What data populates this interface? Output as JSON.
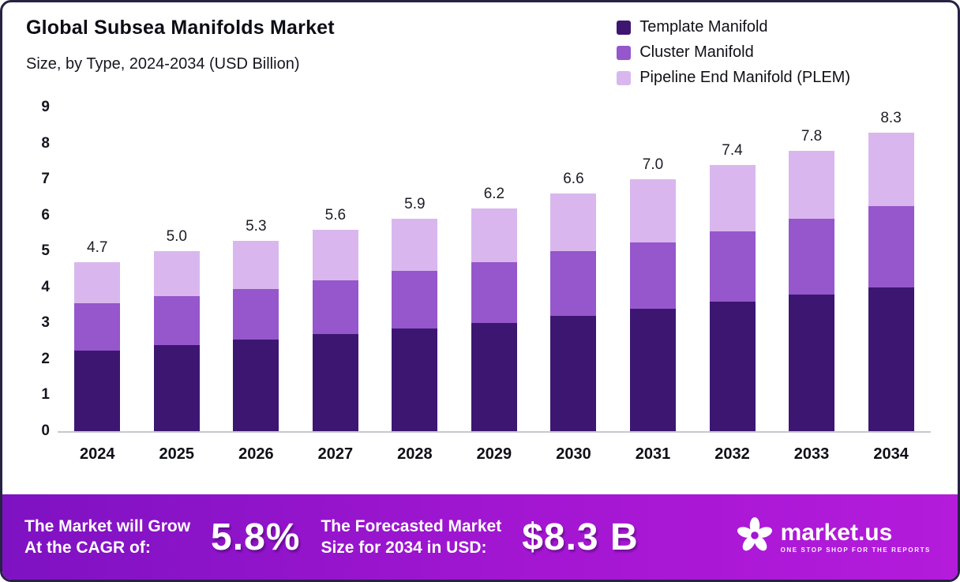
{
  "header": {
    "title": "Global Subsea Manifolds Market",
    "subtitle": "Size, by Type, 2024-2034 (USD Billion)"
  },
  "legend": [
    {
      "label": "Template Manifold",
      "color": "#3d1672"
    },
    {
      "label": "Cluster Manifold",
      "color": "#9557cb"
    },
    {
      "label": "Pipeline End Manifold (PLEM)",
      "color": "#d9b7ee"
    }
  ],
  "chart_data": {
    "type": "bar",
    "stacked": true,
    "title": "Global Subsea Manifolds Market Size, by Type, 2024-2034 (USD Billion)",
    "xlabel": "",
    "ylabel": "USD Billion",
    "ylim": [
      0,
      9
    ],
    "yticks": [
      0,
      1,
      2,
      3,
      4,
      5,
      6,
      7,
      8,
      9
    ],
    "grid": false,
    "legend_position": "top-right",
    "categories": [
      "2024",
      "2025",
      "2026",
      "2027",
      "2028",
      "2029",
      "2030",
      "2031",
      "2032",
      "2033",
      "2034"
    ],
    "totals": [
      "4.7",
      "5.0",
      "5.3",
      "5.6",
      "5.9",
      "6.2",
      "6.6",
      "7.0",
      "7.4",
      "7.8",
      "8.3"
    ],
    "series": [
      {
        "key": "template",
        "name": "Template Manifold",
        "color": "#3d1672",
        "values": [
          2.25,
          2.4,
          2.55,
          2.7,
          2.85,
          3.0,
          3.2,
          3.4,
          3.6,
          3.8,
          4.0
        ]
      },
      {
        "key": "cluster",
        "name": "Cluster Manifold",
        "color": "#9557cb",
        "values": [
          1.3,
          1.35,
          1.4,
          1.5,
          1.6,
          1.7,
          1.8,
          1.85,
          1.95,
          2.1,
          2.25
        ]
      },
      {
        "key": "plem",
        "name": "Pipeline End Manifold (PLEM)",
        "color": "#d9b7ee",
        "values": [
          1.15,
          1.25,
          1.35,
          1.4,
          1.45,
          1.5,
          1.6,
          1.75,
          1.85,
          1.9,
          2.05
        ]
      }
    ]
  },
  "banner": {
    "cagr_label_line1": "The Market will Grow",
    "cagr_label_line2": "At the CAGR of:",
    "cagr_value": "5.8%",
    "forecast_label_line1": "The Forecasted Market",
    "forecast_label_line2": "Size for 2034 in USD:",
    "forecast_value": "$8.3 B",
    "brand": "market.us",
    "brand_tagline": "ONE STOP SHOP FOR THE REPORTS"
  }
}
